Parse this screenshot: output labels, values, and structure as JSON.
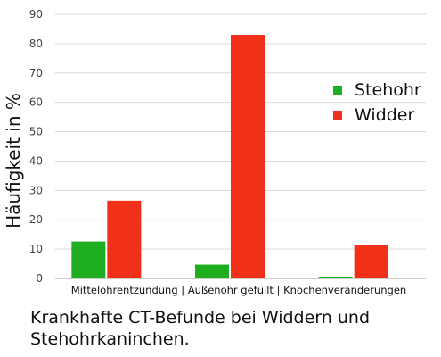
{
  "chart_data": {
    "type": "bar",
    "ylabel": "Häufigkeit in %",
    "xlabel": "",
    "category_label": "Mittelohrentzündung | Außenohr gefüllt | Knochenveränderungen",
    "categories": [
      "Mittelohrentzündung",
      "Außenohr gefüllt",
      "Knochenveränderungen"
    ],
    "ylim": [
      0,
      90
    ],
    "yticks": [
      0,
      10,
      20,
      30,
      40,
      50,
      60,
      70,
      80,
      90
    ],
    "grid": true,
    "legend_position": "right",
    "series": [
      {
        "name": "Stehohr",
        "color": "#1fae1f",
        "values": [
          12.6,
          4.7,
          0.6
        ]
      },
      {
        "name": "Widder",
        "color": "#f03018",
        "values": [
          26.5,
          83,
          11.4
        ]
      }
    ]
  },
  "caption": "Krankhafte CT-Befunde bei Widdern und Stehohrkaninchen."
}
